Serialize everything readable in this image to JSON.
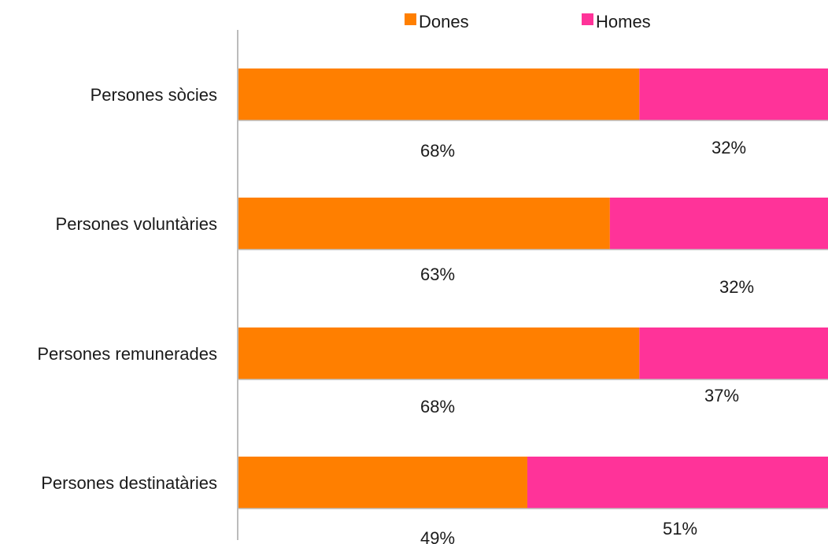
{
  "chart_data": {
    "type": "bar",
    "orientation": "horizontal",
    "stacked": true,
    "categories": [
      "Persones sòcies",
      "Persones voluntàries",
      "Persones remunerades",
      "Persones destinatàries"
    ],
    "series": [
      {
        "name": "Dones",
        "color": "#FF7F00",
        "values": [
          68,
          63,
          68,
          49
        ],
        "labels": [
          "68%",
          "63%",
          "68%",
          "49%"
        ]
      },
      {
        "name": "Homes",
        "color": "#FF3399",
        "values": [
          32,
          32,
          37,
          51
        ],
        "labels": [
          "32%",
          "32%",
          "37%",
          "51%"
        ]
      }
    ],
    "xlim": [
      0,
      100
    ],
    "legend_position": "top",
    "grid": false
  }
}
